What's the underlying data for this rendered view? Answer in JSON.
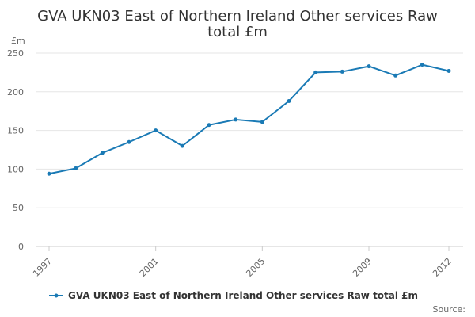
{
  "chart_data": {
    "type": "line",
    "title_lines": [
      "GVA UKN03 East of Northern Ireland Other services Raw",
      "total £m"
    ],
    "y_unit": "£m",
    "xlabel": "",
    "ylabel": "£m",
    "x": [
      1997,
      1998,
      1999,
      2000,
      2001,
      2002,
      2003,
      2004,
      2005,
      2006,
      2007,
      2008,
      2009,
      2010,
      2011,
      2012
    ],
    "x_tick_labels": [
      "1997",
      "2001",
      "2005",
      "2009",
      "2012"
    ],
    "xlim": [
      1997,
      2012
    ],
    "ylim": [
      0,
      250
    ],
    "y_ticks": [
      0,
      50,
      100,
      150,
      200,
      250
    ],
    "y_tick_labels": [
      "0",
      "50",
      "100",
      "150",
      "200",
      "250"
    ],
    "grid": true,
    "legend_position": "bottom",
    "series": [
      {
        "name": "GVA UKN03 East of Northern Ireland Other services Raw total £m",
        "color": "#1a7ab5",
        "values": [
          94,
          101,
          121,
          135,
          150,
          130,
          157,
          164,
          161,
          188,
          225,
          226,
          233,
          221,
          235,
          227
        ]
      }
    ],
    "source_label": "Source:"
  }
}
